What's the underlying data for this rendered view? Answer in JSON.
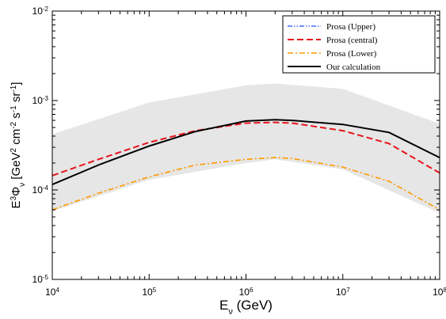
{
  "chart_data": {
    "type": "line",
    "x_scale": "log",
    "y_scale": "log",
    "xlim": [
      10000,
      100000000
    ],
    "ylim": [
      1e-05,
      0.01
    ],
    "grid": false,
    "legend_placement": "top-right",
    "x_ticks": [
      {
        "base": "10",
        "exp": "4",
        "value": 10000
      },
      {
        "base": "10",
        "exp": "5",
        "value": 100000
      },
      {
        "base": "10",
        "exp": "6",
        "value": 1000000
      },
      {
        "base": "10",
        "exp": "7",
        "value": 10000000
      },
      {
        "base": "10",
        "exp": "8",
        "value": 100000000
      }
    ],
    "y_ticks": [
      {
        "base": "10",
        "exp": "-5",
        "value": 1e-05
      },
      {
        "base": "10",
        "exp": "-4",
        "value": 0.0001
      },
      {
        "base": "10",
        "exp": "-3",
        "value": 0.001
      },
      {
        "base": "10",
        "exp": "-2",
        "value": 0.01
      }
    ],
    "xlabel": {
      "main": "E",
      "sub": "ν",
      "rest": " (GeV)"
    },
    "ylabel": {
      "parts": [
        {
          "t": "E",
          "s": ""
        },
        {
          "t": "3",
          "s": "sup"
        },
        {
          "t": "Φ",
          "s": ""
        },
        {
          "t": "ν",
          "s": "sub"
        },
        {
          "t": " [GeV",
          "s": ""
        },
        {
          "t": "2",
          "s": "sup"
        },
        {
          "t": " cm",
          "s": ""
        },
        {
          "t": "-2",
          "s": "sup"
        },
        {
          "t": " s",
          "s": ""
        },
        {
          "t": "-1",
          "s": "sup"
        },
        {
          "t": " sr",
          "s": ""
        },
        {
          "t": "-1",
          "s": "sup"
        },
        {
          "t": "]",
          "s": ""
        }
      ]
    },
    "band": {
      "color": "#e6e6e6",
      "x": [
        10000,
        100000,
        1000000,
        2000000,
        10000000,
        100000000
      ],
      "upper": [
        0.00042,
        0.00095,
        0.00148,
        0.00155,
        0.00135,
        0.00055
      ],
      "lower": [
        5.8e-05,
        0.00013,
        0.0002,
        0.00022,
        0.00017,
        5.5e-05
      ]
    },
    "series": [
      {
        "name": "Prosa (Upper)",
        "color": "#4a6cff",
        "dash": "6 2 1.5 2 1.5 2",
        "width": 1.4,
        "x": [],
        "values": []
      },
      {
        "name": "Prosa (central)",
        "color": "#e8141c",
        "dash": "8 4",
        "width": 2,
        "x": [
          10000,
          30000,
          100000,
          300000,
          1000000,
          2000000,
          3000000,
          10000000,
          30000000,
          100000000
        ],
        "values": [
          0.000145,
          0.00022,
          0.00034,
          0.00046,
          0.00056,
          0.00057,
          0.00056,
          0.00046,
          0.00033,
          0.000155
        ]
      },
      {
        "name": "Prosa (Lower)",
        "color": "#ff9a00",
        "dash": "7 3 2 3",
        "width": 1.6,
        "x": [
          10000,
          30000,
          100000,
          300000,
          1000000,
          2000000,
          3000000,
          10000000,
          30000000,
          100000000
        ],
        "values": [
          6e-05,
          9.2e-05,
          0.00014,
          0.00019,
          0.00022,
          0.00023,
          0.000225,
          0.00018,
          0.000125,
          6e-05
        ]
      },
      {
        "name": "Our calculation",
        "color": "#000000",
        "dash": "",
        "width": 2,
        "x": [
          10000,
          30000,
          100000,
          300000,
          1000000,
          2000000,
          3000000,
          10000000,
          30000000,
          100000000
        ],
        "values": [
          0.000115,
          0.00019,
          0.00031,
          0.00045,
          0.00059,
          0.00061,
          0.0006,
          0.00054,
          0.00044,
          0.00023
        ]
      }
    ]
  }
}
